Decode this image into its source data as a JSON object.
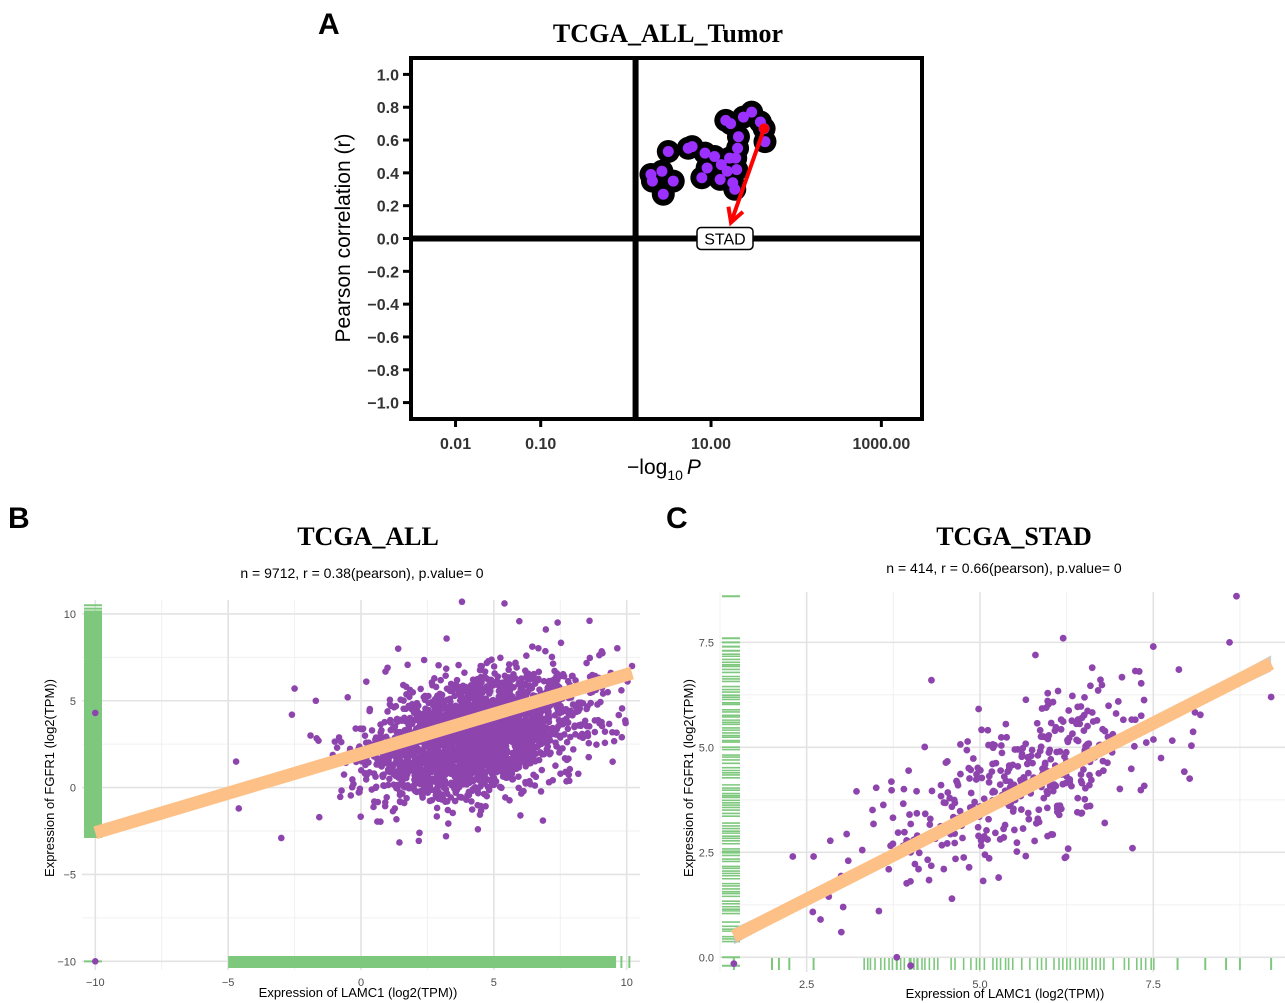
{
  "panel_labels": {
    "a": "A",
    "b": "B",
    "c": "C"
  },
  "colors": {
    "point": "#8e44ad",
    "pointA": "#9b30ff",
    "rug": "#7ec87e",
    "fit": "#fdc086",
    "arrow": "#ff0000",
    "grid": "#e8e8e8"
  },
  "chart_data": [
    {
      "id": "A",
      "type": "scatter",
      "title": "TCGA_ALL_Tumor",
      "xlabel": "−log10 P",
      "xlabel_main": "−log",
      "xlabel_sub": "10",
      "xlabel_var": "P",
      "ylabel": "Pearson correlation (r)",
      "x_scale": "log",
      "xlim": [
        0.003,
        3000
      ],
      "ylim": [
        -1.1,
        1.1
      ],
      "x_ticks": [
        0.01,
        0.1,
        10,
        1000
      ],
      "x_tick_labels": [
        "0.01",
        "0.10",
        "10.00",
        "1000.00"
      ],
      "y_ticks": [
        1.0,
        0.8,
        0.6,
        0.4,
        0.2,
        0.0,
        -0.2,
        -0.4,
        -0.6,
        -0.8,
        -1.0
      ],
      "y_tick_labels": [
        "1.0",
        "0.8",
        "0.6",
        "0.4",
        "0.2",
        "0.0",
        "−0.2",
        "−0.4",
        "−0.6",
        "−0.8",
        "−1.0"
      ],
      "vline_x": 1.3,
      "hline_y": 0.0,
      "points": [
        [
          1.97,
          0.39
        ],
        [
          2.05,
          0.35
        ],
        [
          2.65,
          0.41
        ],
        [
          2.75,
          0.27
        ],
        [
          3.15,
          0.53
        ],
        [
          3.6,
          0.35
        ],
        [
          5.4,
          0.55
        ],
        [
          6.0,
          0.56
        ],
        [
          7.8,
          0.37
        ],
        [
          8.5,
          0.52
        ],
        [
          11.0,
          0.5
        ],
        [
          12.8,
          0.36
        ],
        [
          14.9,
          0.72
        ],
        [
          16.5,
          0.49
        ],
        [
          17.0,
          0.7
        ],
        [
          18.0,
          0.34
        ],
        [
          19.0,
          0.3
        ],
        [
          19.5,
          0.49
        ],
        [
          20.0,
          0.42
        ],
        [
          20.5,
          0.55
        ],
        [
          21.0,
          0.62
        ],
        [
          24.0,
          0.74
        ],
        [
          30.0,
          0.77
        ],
        [
          38.0,
          0.71
        ],
        [
          42.0,
          0.67
        ],
        [
          43.0,
          0.59
        ],
        [
          9.0,
          0.43
        ],
        [
          15.5,
          0.41
        ],
        [
          13.2,
          0.45
        ]
      ],
      "highlight": {
        "label": "STAD",
        "x": 42.0,
        "y": 0.67
      }
    },
    {
      "id": "B",
      "type": "scatter",
      "title": "TCGA_ALL",
      "subtitle": "n = 9712, r = 0.38(pearson), p.value= 0",
      "xlabel": "Expression of LAMC1 (log2(TPM))",
      "ylabel": "Expression of FGFR1 (log2(TPM))",
      "xlim": [
        -10.5,
        10.5
      ],
      "ylim": [
        -10.5,
        10.8
      ],
      "x_ticks": [
        -10,
        -5,
        0,
        5,
        10
      ],
      "x_tick_labels": [
        "−10",
        "−5",
        "0",
        "5",
        "10"
      ],
      "y_ticks": [
        10,
        5,
        0,
        -5,
        -10
      ],
      "y_tick_labels": [
        "10",
        "5",
        "0",
        "−5",
        "−10"
      ],
      "fit": {
        "x": [
          -10,
          10.2
        ],
        "y": [
          -2.6,
          6.6
        ]
      },
      "cluster": {
        "cx": 4.3,
        "cy": 3.0,
        "sx": 1.9,
        "sy": 1.7,
        "rho": 0.38,
        "n": 2600
      },
      "outliers": [
        [
          -10,
          -10
        ],
        [
          -10,
          4.3
        ],
        [
          -4.7,
          1.5
        ],
        [
          -4.6,
          -1.2
        ],
        [
          -3.0,
          -2.9
        ],
        [
          -2.6,
          4.2
        ],
        [
          -2.5,
          5.7
        ],
        [
          -1.7,
          5.0
        ],
        [
          -1.6,
          2.7
        ],
        [
          -1.2,
          1.4
        ],
        [
          -0.9,
          2.3
        ],
        [
          -0.5,
          5.2
        ],
        [
          0.2,
          6.1
        ],
        [
          0.5,
          -0.8
        ],
        [
          1.0,
          6.9
        ],
        [
          3.8,
          10.7
        ],
        [
          5.4,
          10.6
        ],
        [
          8.6,
          9.6
        ],
        [
          10.2,
          7.0
        ],
        [
          9.8,
          5.6
        ],
        [
          8.8,
          3.2
        ],
        [
          9.4,
          6.6
        ],
        [
          4.4,
          -2.4
        ],
        [
          6.0,
          -1.6
        ],
        [
          2.2,
          -2.6
        ],
        [
          3.2,
          -2.8
        ],
        [
          1.4,
          8.0
        ],
        [
          7.4,
          9.5
        ],
        [
          -0.2,
          3.4
        ],
        [
          -1.9,
          3.0
        ]
      ],
      "rug_x_range": [
        -5,
        9.6
      ],
      "rug_x_extra": [
        -4.9,
        -4.2,
        -3.6,
        -2.9,
        -2.5,
        -1.5,
        -1.0,
        0.1,
        9.8,
        10.1
      ],
      "rug_y_range": [
        -2.9,
        10.2
      ],
      "rug_y_extra": [
        -10.0,
        10.3,
        10.5
      ]
    },
    {
      "id": "C",
      "type": "scatter",
      "title": "TCGA_STAD",
      "subtitle": "n = 414, r = 0.66(pearson), p.value= 0",
      "xlabel": "Expression of LAMC1 (log2(TPM))",
      "ylabel": "Expression of FGFR1 (log2(TPM))",
      "xlim": [
        1.25,
        9.4
      ],
      "ylim": [
        -0.35,
        8.7
      ],
      "x_ticks": [
        2.5,
        5.0,
        7.5
      ],
      "x_tick_labels": [
        "2.5",
        "5.0",
        "7.5"
      ],
      "y_ticks": [
        7.5,
        5.0,
        2.5,
        0.0
      ],
      "y_tick_labels": [
        "7.5",
        "5.0",
        "2.5",
        "0.0"
      ],
      "fit": {
        "x": [
          1.45,
          9.2
        ],
        "y": [
          0.5,
          7.0
        ]
      },
      "cluster": {
        "cx": 5.55,
        "cy": 4.2,
        "sx": 1.0,
        "sy": 1.05,
        "rho": 0.66,
        "n": 390
      },
      "outliers": [
        [
          1.45,
          -0.15
        ],
        [
          8.7,
          8.6
        ],
        [
          8.6,
          7.5
        ],
        [
          9.2,
          6.2
        ],
        [
          7.5,
          7.4
        ],
        [
          7.2,
          2.6
        ],
        [
          3.0,
          0.6
        ],
        [
          2.7,
          0.9
        ],
        [
          2.3,
          2.4
        ],
        [
          2.6,
          2.4
        ],
        [
          3.1,
          2.3
        ],
        [
          3.8,
          0.0
        ],
        [
          4.0,
          -0.2
        ],
        [
          4.3,
          6.6
        ],
        [
          6.2,
          7.6
        ],
        [
          5.8,
          7.2
        ],
        [
          6.8,
          3.2
        ],
        [
          4.0,
          2.5
        ]
      ],
      "rug_x": [
        1.45,
        2.0,
        2.1,
        2.25,
        2.6,
        3.8,
        4.0,
        4.1,
        7.85,
        8.25,
        8.55,
        8.75,
        9.2
      ],
      "rug_x_range": [
        3.3,
        7.55
      ],
      "rug_y": [
        -0.2,
        0.0,
        8.6,
        7.6,
        7.5,
        7.4,
        7.3
      ],
      "rug_y_range": [
        0.3,
        7.2
      ]
    }
  ]
}
